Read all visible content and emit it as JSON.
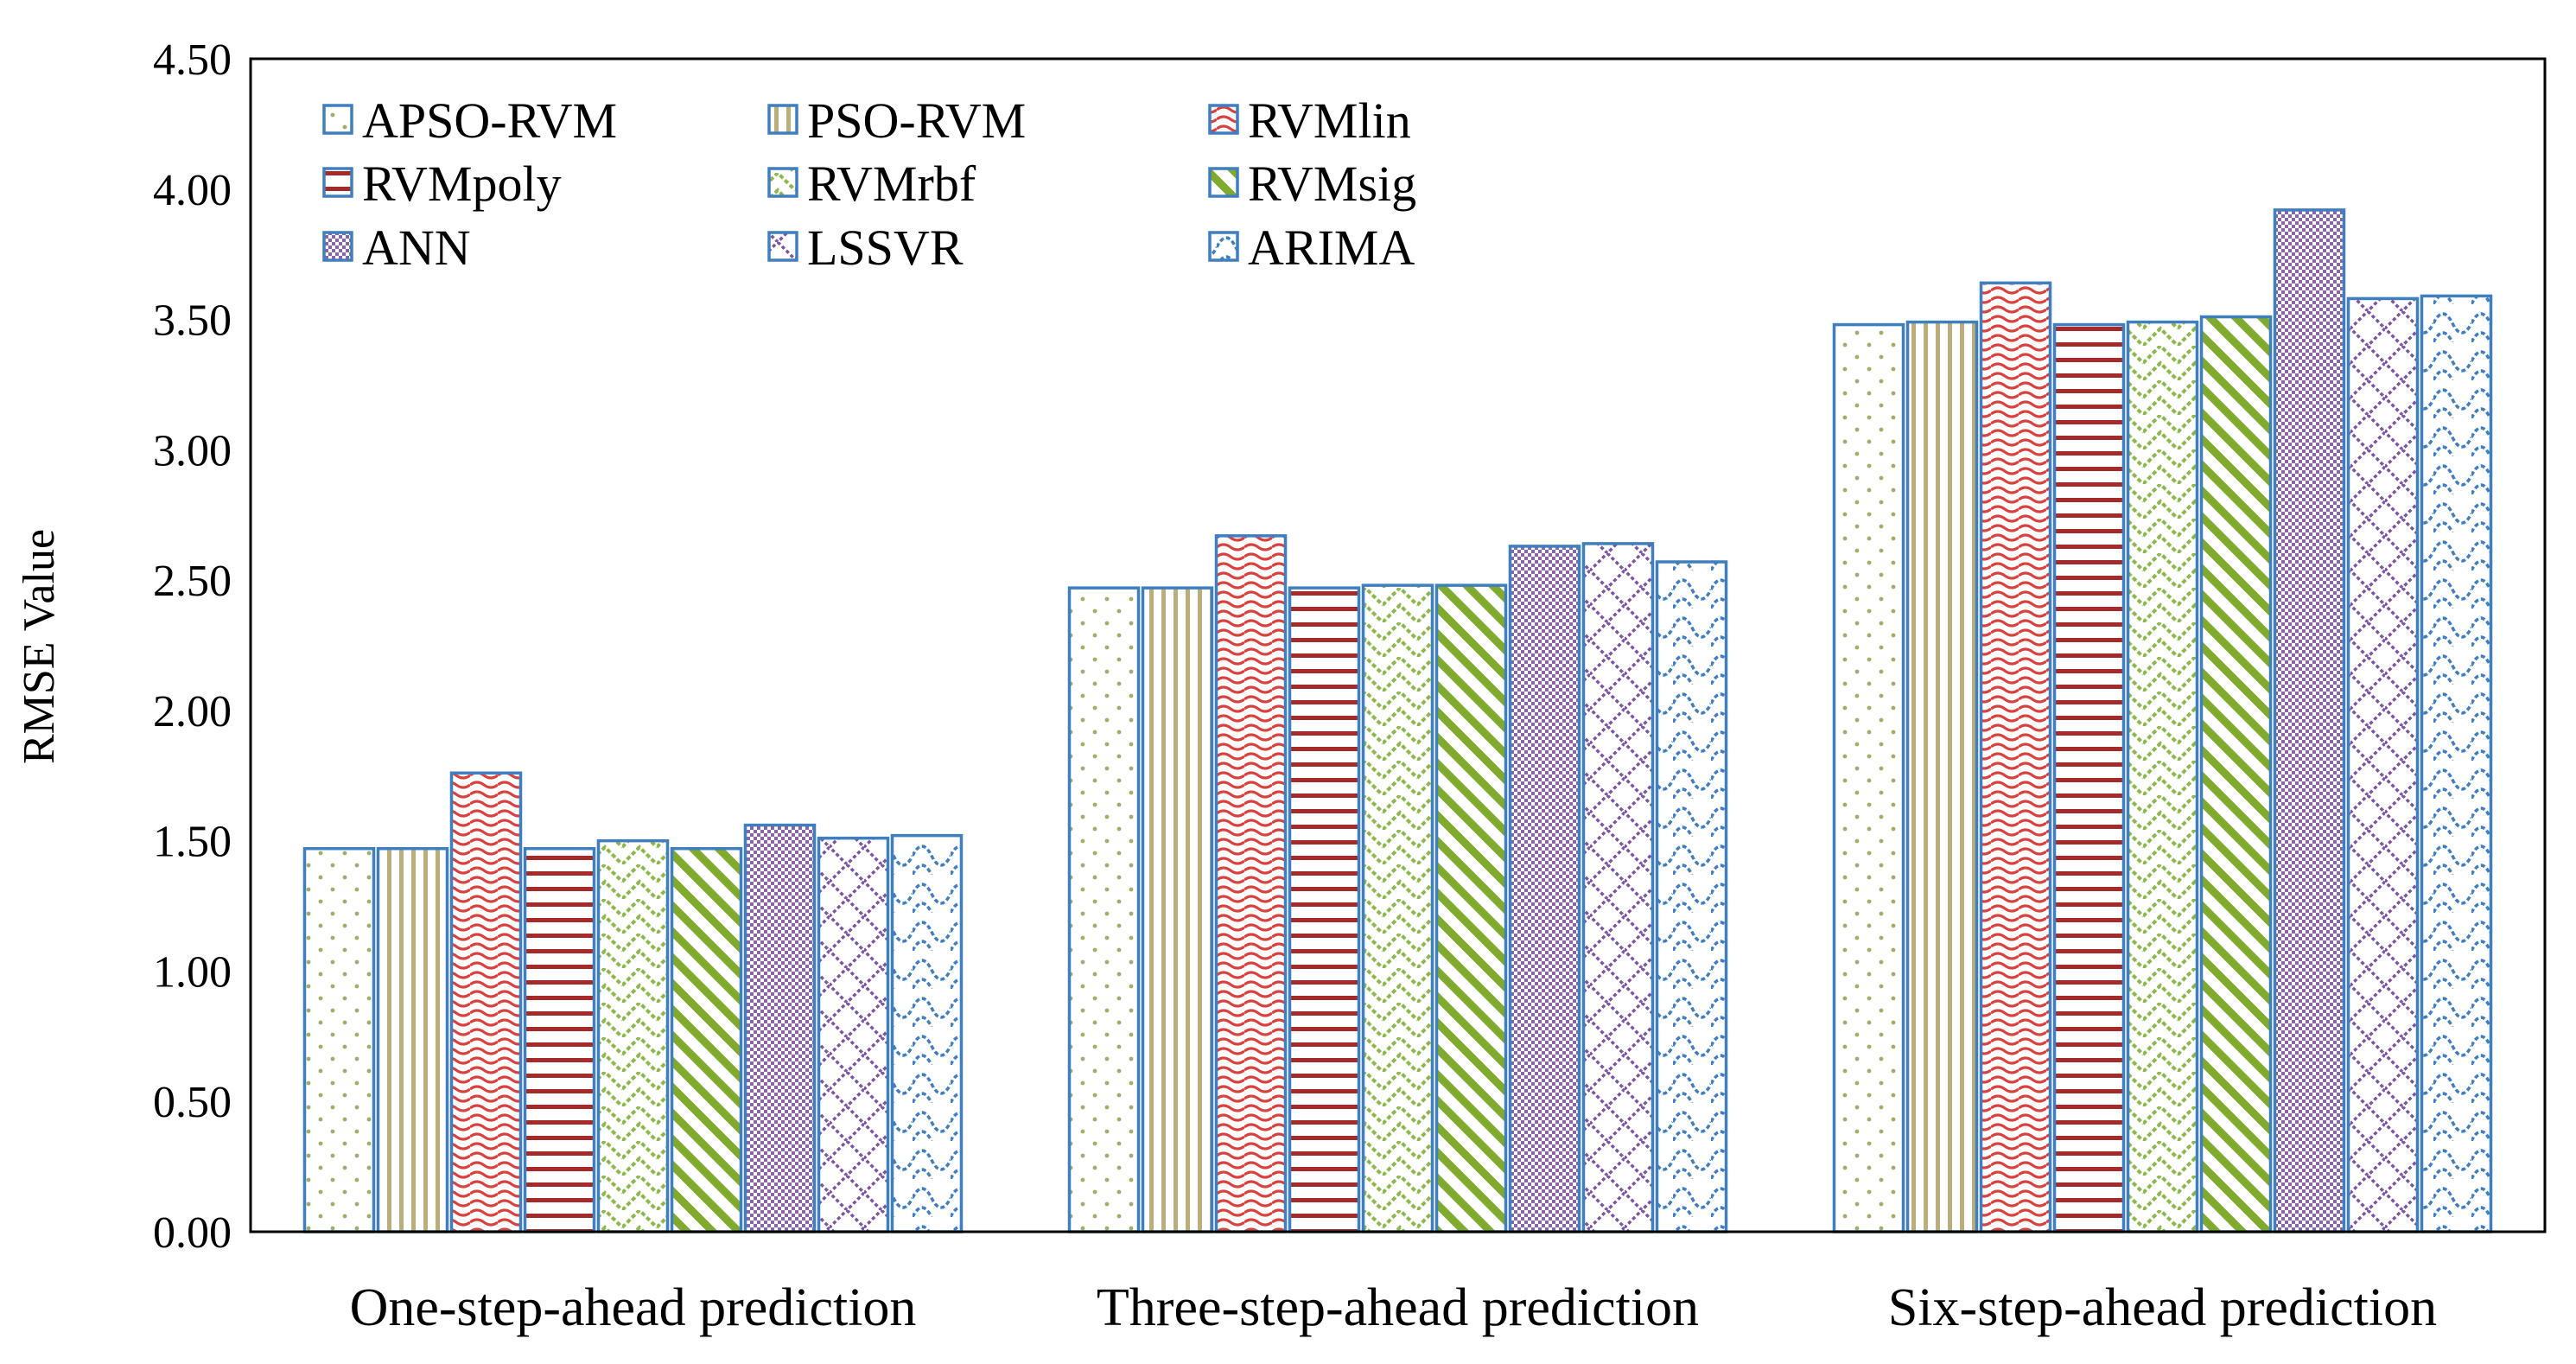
{
  "chart_data": {
    "type": "bar",
    "title": "",
    "xlabel": "",
    "ylabel": "RMSE Value",
    "ylim": [
      0,
      4.5
    ],
    "yticks": [
      "0.00",
      "0.50",
      "1.00",
      "1.50",
      "2.00",
      "2.50",
      "3.00",
      "3.50",
      "4.00",
      "4.50"
    ],
    "categories": [
      "One-step-ahead prediction",
      "Three-step-ahead prediction",
      "Six-step-ahead prediction"
    ],
    "legend_position": "top-left",
    "series": [
      {
        "name": "APSO-RVM",
        "values": [
          1.47,
          2.47,
          3.48
        ],
        "pattern": "dots",
        "color": "#9CB067",
        "border": "#3F7FC0"
      },
      {
        "name": "PSO-RVM",
        "values": [
          1.47,
          2.47,
          3.49
        ],
        "pattern": "vertical",
        "color": "#BCAE7A",
        "border": "#3F7FC0"
      },
      {
        "name": "RVMlin",
        "values": [
          1.76,
          2.67,
          3.64
        ],
        "pattern": "wave",
        "color": "#D9413E",
        "border": "#3F7FC0"
      },
      {
        "name": "RVMpoly",
        "values": [
          1.47,
          2.47,
          3.48
        ],
        "pattern": "horizontal",
        "color": "#A52A2A",
        "border": "#3F7FC0"
      },
      {
        "name": "RVMrbf",
        "values": [
          1.5,
          2.48,
          3.49
        ],
        "pattern": "zigzag",
        "color": "#8DB849",
        "border": "#3F7FC0"
      },
      {
        "name": "RVMsig",
        "values": [
          1.47,
          2.48,
          3.51
        ],
        "pattern": "diagonal",
        "color": "#7FAA2E",
        "border": "#3F7FC0"
      },
      {
        "name": "ANN",
        "values": [
          1.56,
          2.63,
          3.92
        ],
        "pattern": "checker",
        "color": "#8A63A8",
        "border": "#3F7FC0"
      },
      {
        "name": "LSSVR",
        "values": [
          1.51,
          2.64,
          3.58
        ],
        "pattern": "diamond",
        "color": "#7A55A3",
        "border": "#3F7FC0"
      },
      {
        "name": "ARIMA",
        "values": [
          1.52,
          2.57,
          3.59
        ],
        "pattern": "scallop",
        "color": "#3F7FC0",
        "border": "#3F7FC0"
      }
    ]
  }
}
